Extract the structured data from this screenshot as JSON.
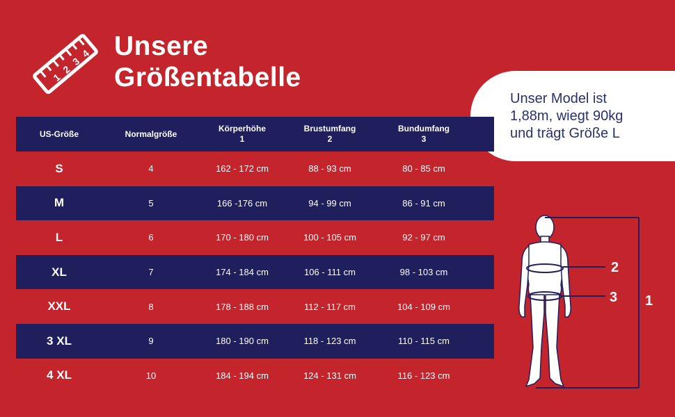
{
  "title": {
    "line1": "Unsere",
    "line2": "Größentabelle"
  },
  "ruler_icon": {
    "name": "ruler-icon",
    "digits": [
      "1",
      "2",
      "3",
      "4"
    ]
  },
  "model_info": {
    "line1": "Unser Model ist",
    "line2": "1,88m, wiegt 90kg",
    "line3": "und trägt Größe L"
  },
  "table": {
    "headers": [
      {
        "label": "US-Größe",
        "num": ""
      },
      {
        "label": "Normalgröße",
        "num": ""
      },
      {
        "label": "Körperhöhe",
        "num": "1"
      },
      {
        "label": "Brustumfang",
        "num": "2"
      },
      {
        "label": "Bundumfang",
        "num": "3"
      }
    ],
    "rows": [
      [
        "S",
        "4",
        "162 - 172 cm",
        "88 - 93 cm",
        "80 - 85 cm"
      ],
      [
        "M",
        "5",
        "166 -176 cm",
        "94 - 99 cm",
        "86 - 91 cm"
      ],
      [
        "L",
        "6",
        "170 - 180 cm",
        "100 - 105 cm",
        "92 - 97 cm"
      ],
      [
        "XL",
        "7",
        "174 - 184 cm",
        "106 - 111 cm",
        "98 - 103 cm"
      ],
      [
        "XXL",
        "8",
        "178 - 188 cm",
        "112 - 117 cm",
        "104 - 109 cm"
      ],
      [
        "3 XL",
        "9",
        "180 - 190 cm",
        "118 - 123 cm",
        "110 - 115 cm"
      ],
      [
        "4 XL",
        "10",
        "184 - 194 cm",
        "124 - 131 cm",
        "116 - 123 cm"
      ]
    ]
  },
  "figure": {
    "label_chest": "2",
    "label_waist": "3",
    "label_height": "1"
  },
  "colors": {
    "background": "#c4242c",
    "navy": "#1f1f5e",
    "text_dark": "#2a2f6e",
    "white": "#ffffff"
  }
}
